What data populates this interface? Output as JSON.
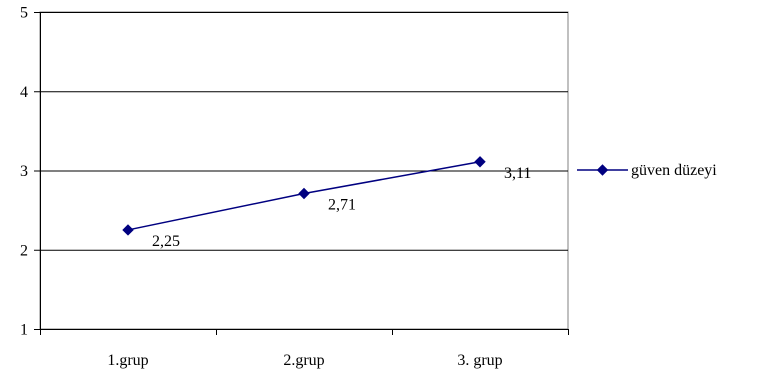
{
  "chart_data": {
    "type": "line",
    "categories": [
      "1.grup",
      "2.grup",
      "3. grup"
    ],
    "series": [
      {
        "name": "güven düzeyi",
        "values": [
          2.25,
          2.71,
          3.11
        ],
        "data_labels": [
          "2,25",
          "2,71",
          "3,11"
        ],
        "color": "#000080",
        "marker": "diamond"
      }
    ],
    "ylim": [
      1,
      5
    ],
    "yticks": [
      1,
      2,
      3,
      4,
      5
    ],
    "grid": "horizontal",
    "legend": "right"
  }
}
